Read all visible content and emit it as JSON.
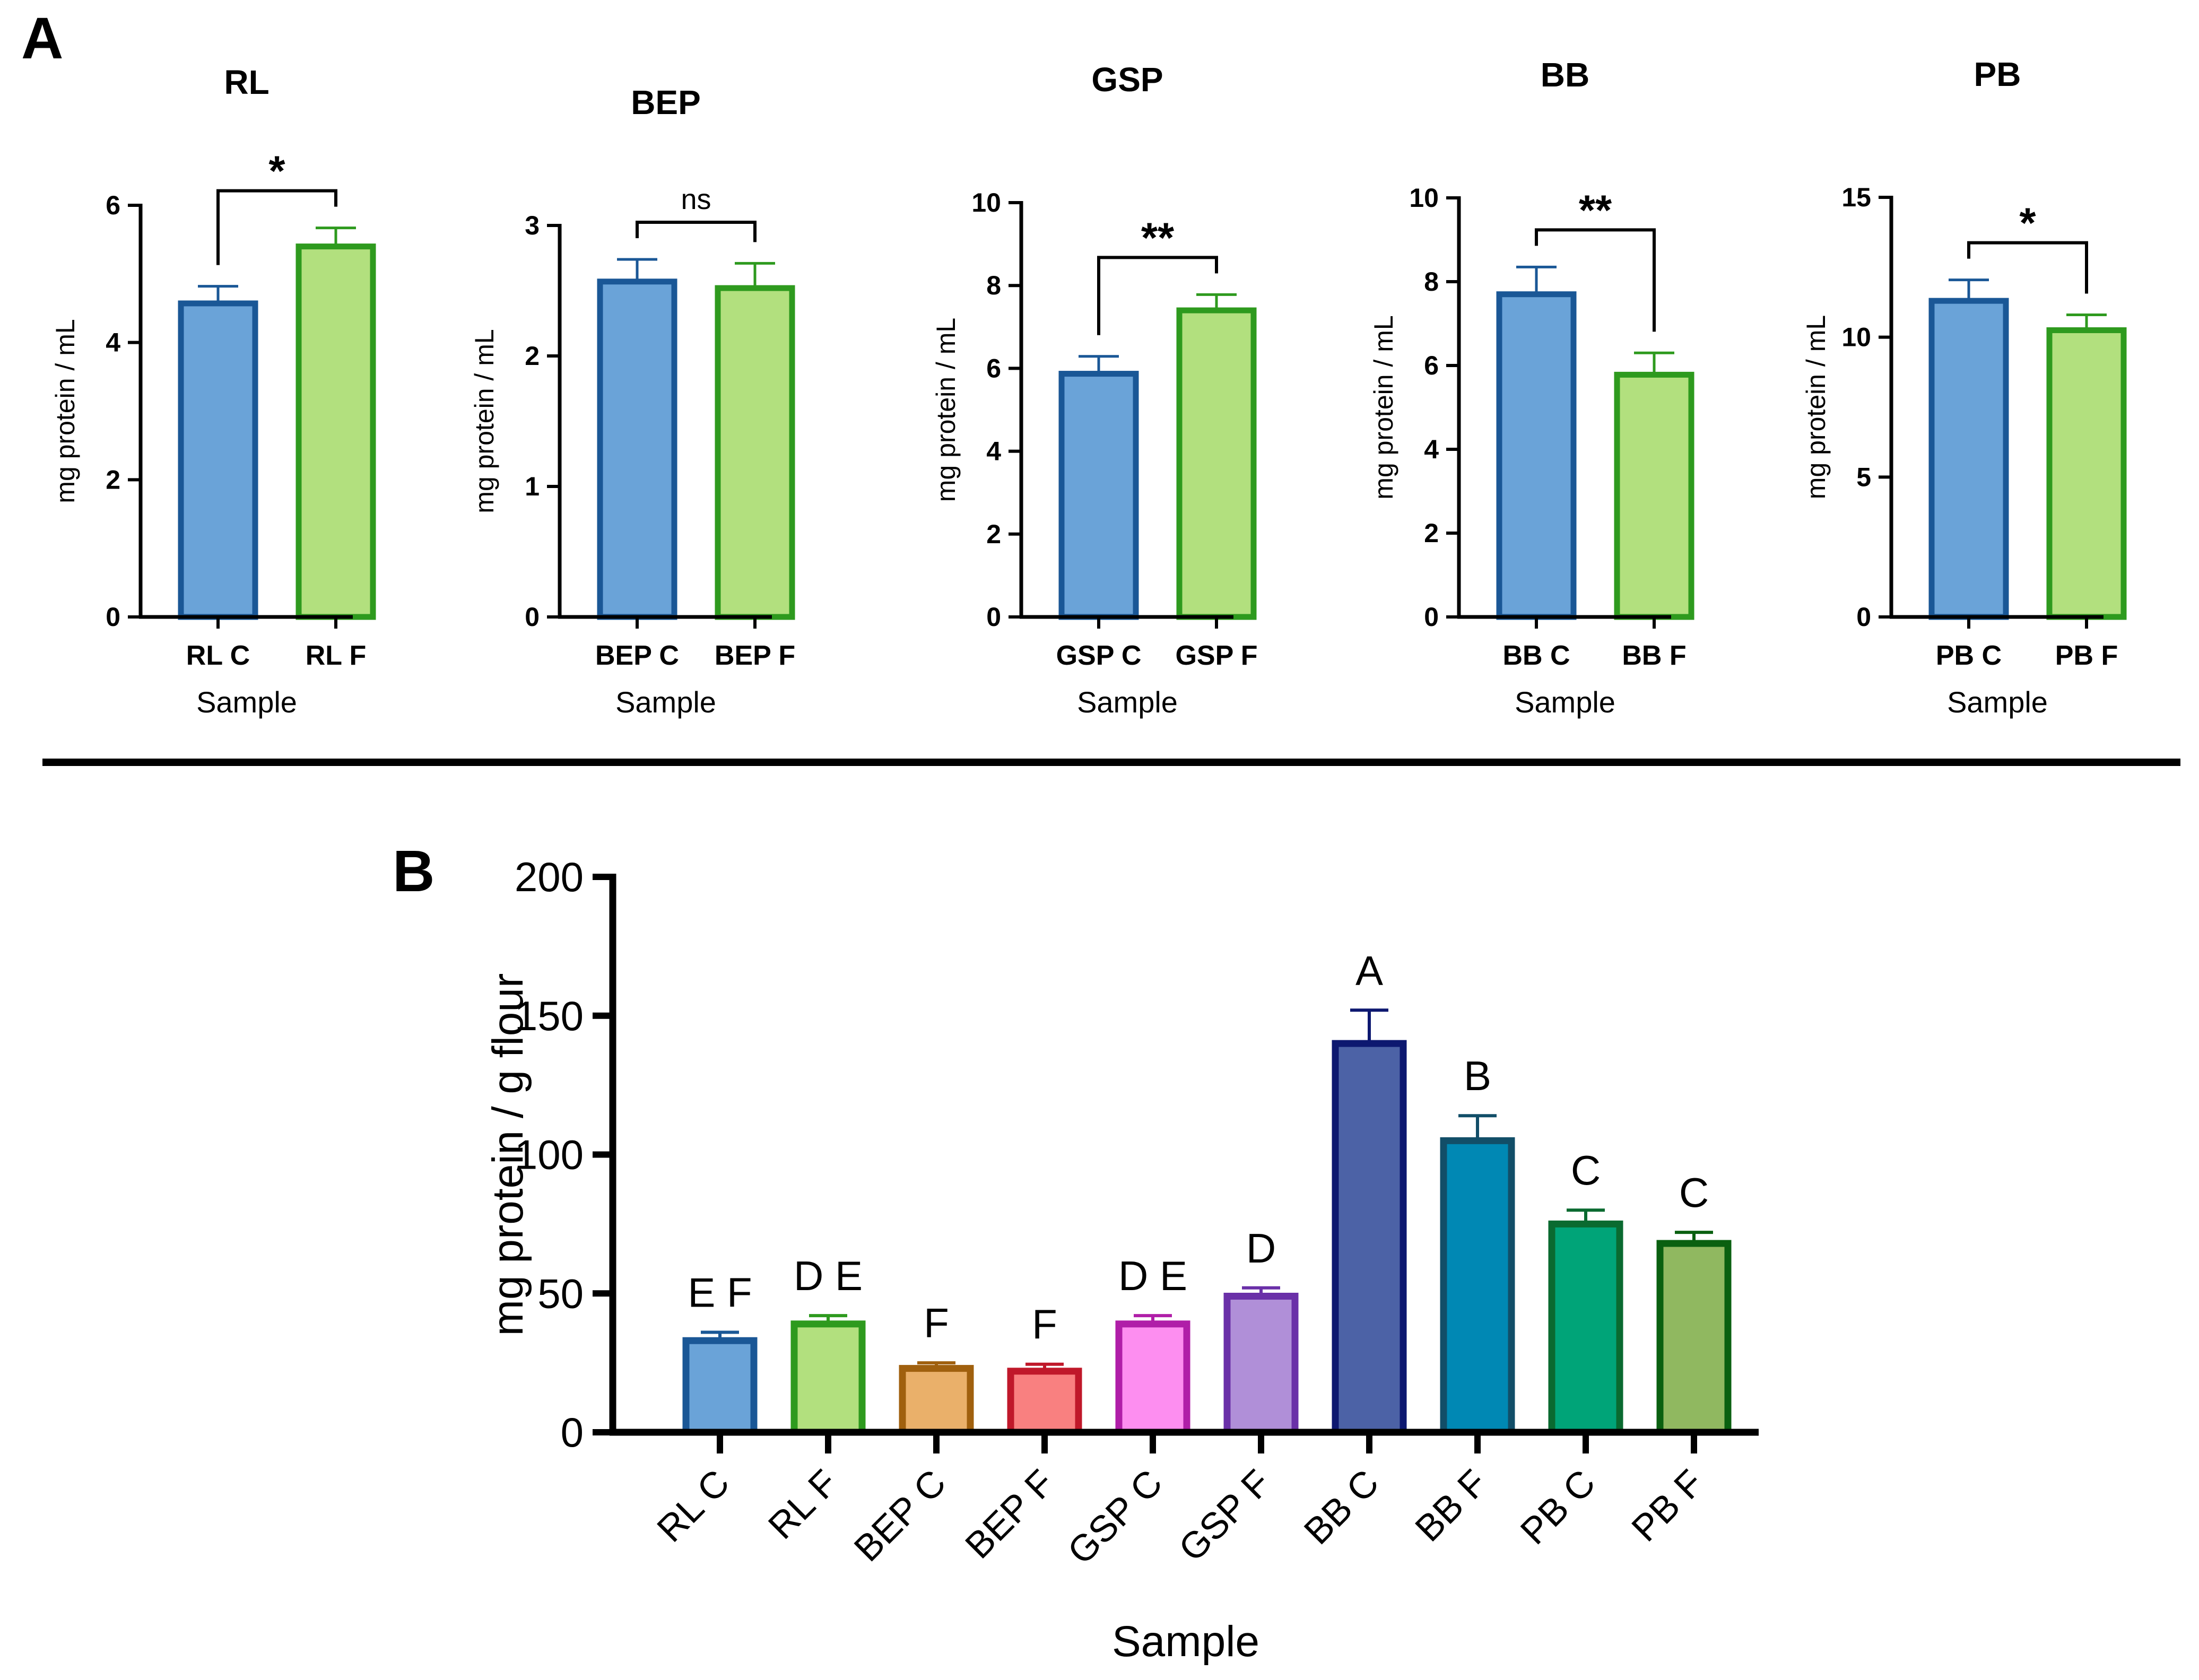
{
  "labels": {
    "panelA": "A",
    "panelB": "B"
  },
  "colors": {
    "control_fill": "#6aa3d8",
    "control_stroke": "#1a5796",
    "fermented_fill": "#b2e07e",
    "fermented_stroke": "#2e9a1e",
    "axis": "#000000",
    "divider": "#000000"
  },
  "chart_data": [
    {
      "type": "bar",
      "panel": "A",
      "title": "RL",
      "categories": [
        "RL C",
        "RL F"
      ],
      "values": [
        4.57,
        5.4
      ],
      "errors": [
        0.25,
        0.27
      ],
      "xlabel": "Sample",
      "ylabel": "mg protein / mL",
      "ylim": [
        0,
        6
      ],
      "yticks": [
        "0",
        "2",
        "4",
        "6"
      ],
      "significance": "*"
    },
    {
      "type": "bar",
      "panel": "A",
      "title": "BEP",
      "categories": [
        "BEP C",
        "BEP F"
      ],
      "values": [
        2.57,
        2.52
      ],
      "errors": [
        0.17,
        0.19
      ],
      "xlabel": "Sample",
      "ylabel": "mg protein / mL",
      "ylim": [
        0,
        3
      ],
      "yticks": [
        "0",
        "1",
        "2",
        "3"
      ],
      "significance": "ns"
    },
    {
      "type": "bar",
      "panel": "A",
      "title": "GSP",
      "categories": [
        "GSP C",
        "GSP F"
      ],
      "values": [
        5.87,
        7.4
      ],
      "errors": [
        0.42,
        0.38
      ],
      "xlabel": "Sample",
      "ylabel": "mg protein / mL",
      "ylim": [
        0,
        10
      ],
      "yticks": [
        "0",
        "2",
        "4",
        "6",
        "8",
        "10"
      ],
      "significance": "**"
    },
    {
      "type": "bar",
      "panel": "A",
      "title": "BB",
      "categories": [
        "BB C",
        "BB F"
      ],
      "values": [
        7.7,
        5.78
      ],
      "errors": [
        0.65,
        0.52
      ],
      "xlabel": "Sample",
      "ylabel": "mg protein / mL",
      "ylim": [
        0,
        10
      ],
      "yticks": [
        "0",
        "2",
        "4",
        "6",
        "8",
        "10"
      ],
      "significance": "**"
    },
    {
      "type": "bar",
      "panel": "A",
      "title": "PB",
      "categories": [
        "PB C",
        "PB F"
      ],
      "values": [
        11.3,
        10.25
      ],
      "errors": [
        0.75,
        0.55
      ],
      "xlabel": "Sample",
      "ylabel": "mg protein / mL",
      "ylim": [
        0,
        15
      ],
      "yticks": [
        "0",
        "5",
        "10",
        "15"
      ],
      "significance": "*"
    },
    {
      "type": "bar",
      "panel": "B",
      "title": "",
      "categories": [
        "RL C",
        "RL F",
        "BEP C",
        "BEP F",
        "GSP C",
        "GSP F",
        "BB C",
        "BB F",
        "PB C",
        "PB F"
      ],
      "values": [
        33,
        39,
        23,
        22,
        39,
        49,
        140,
        105,
        75,
        68
      ],
      "errors": [
        3,
        3,
        2,
        2.5,
        3,
        3,
        12,
        9,
        5,
        4
      ],
      "group_letters": [
        "E F",
        "D E",
        "F",
        "F",
        "D E",
        "D",
        "A",
        "B",
        "C",
        "C"
      ],
      "fill_colors": [
        "#6aa3d8",
        "#b2e07e",
        "#eab06a",
        "#f98080",
        "#fd8ef0",
        "#b08fd8",
        "#4c62a6",
        "#0088b4",
        "#00a478",
        "#90b860"
      ],
      "stroke_colors": [
        "#1a5796",
        "#2e9a1e",
        "#a0600e",
        "#c0182a",
        "#b01ea8",
        "#6a30a8",
        "#0d1870",
        "#124e68",
        "#0a6a30",
        "#0a6010"
      ],
      "xlabel": "Sample",
      "ylabel": "mg protein / g flour",
      "ylim": [
        0,
        200
      ],
      "yticks": [
        "0",
        "50",
        "100",
        "150",
        "200"
      ]
    }
  ]
}
